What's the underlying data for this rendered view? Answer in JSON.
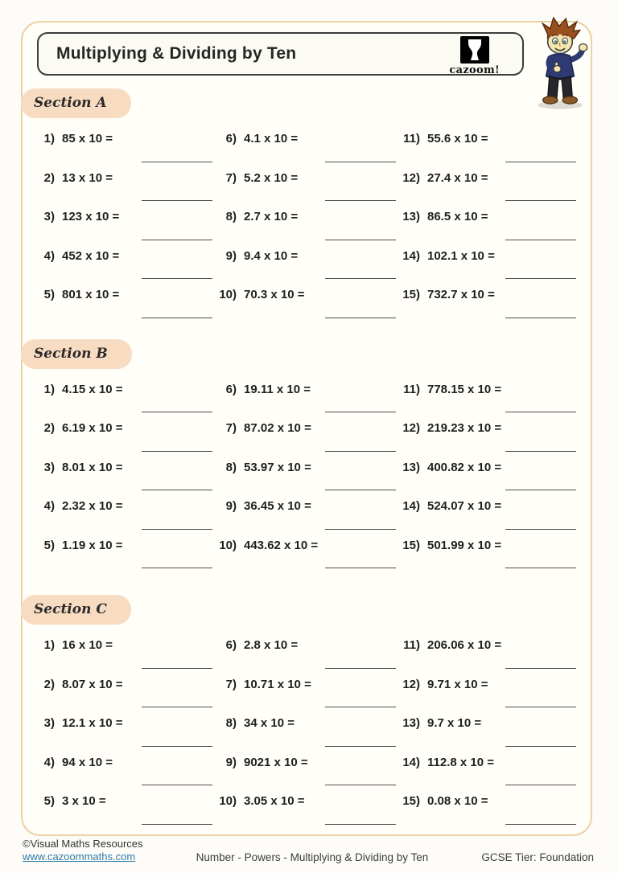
{
  "header": {
    "title": "Multiplying & Dividing by Ten",
    "logo_text": "cazoom!"
  },
  "sections": [
    {
      "label": "Section A",
      "questions": [
        {
          "num": "1)",
          "expr": "85 x 10 ="
        },
        {
          "num": "2)",
          "expr": "13 x 10 ="
        },
        {
          "num": "3)",
          "expr": "123 x 10 ="
        },
        {
          "num": "4)",
          "expr": "452 x 10 ="
        },
        {
          "num": "5)",
          "expr": "801 x 10 ="
        },
        {
          "num": "6)",
          "expr": "4.1 x 10 ="
        },
        {
          "num": "7)",
          "expr": "5.2 x 10 ="
        },
        {
          "num": "8)",
          "expr": "2.7 x 10 ="
        },
        {
          "num": "9)",
          "expr": "9.4 x 10 ="
        },
        {
          "num": "10)",
          "expr": "70.3 x 10 ="
        },
        {
          "num": "11)",
          "expr": "55.6 x 10 ="
        },
        {
          "num": "12)",
          "expr": "27.4 x 10 ="
        },
        {
          "num": "13)",
          "expr": "86.5 x 10 ="
        },
        {
          "num": "14)",
          "expr": "102.1 x 10 ="
        },
        {
          "num": "15)",
          "expr": "732.7 x 10 ="
        }
      ]
    },
    {
      "label": "Section B",
      "questions": [
        {
          "num": "1)",
          "expr": "4.15 x 10 ="
        },
        {
          "num": "2)",
          "expr": "6.19 x 10 ="
        },
        {
          "num": "3)",
          "expr": "8.01 x 10 ="
        },
        {
          "num": "4)",
          "expr": "2.32 x 10 ="
        },
        {
          "num": "5)",
          "expr": "1.19 x 10 ="
        },
        {
          "num": "6)",
          "expr": "19.11 x 10 ="
        },
        {
          "num": "7)",
          "expr": "87.02 x 10 ="
        },
        {
          "num": "8)",
          "expr": "53.97 x 10 ="
        },
        {
          "num": "9)",
          "expr": "36.45 x 10 ="
        },
        {
          "num": "10)",
          "expr": "443.62 x 10 ="
        },
        {
          "num": "11)",
          "expr": "778.15 x 10 ="
        },
        {
          "num": "12)",
          "expr": "219.23 x 10 ="
        },
        {
          "num": "13)",
          "expr": "400.82 x 10 ="
        },
        {
          "num": "14)",
          "expr": "524.07 x 10 ="
        },
        {
          "num": "15)",
          "expr": "501.99 x 10 ="
        }
      ]
    },
    {
      "label": "Section C",
      "questions": [
        {
          "num": "1)",
          "expr": "16 x 10 ="
        },
        {
          "num": "2)",
          "expr": "8.07 x 10 ="
        },
        {
          "num": "3)",
          "expr": "12.1 x 10 ="
        },
        {
          "num": "4)",
          "expr": "94 x 10 ="
        },
        {
          "num": "5)",
          "expr": "3 x 10 ="
        },
        {
          "num": "6)",
          "expr": "2.8 x 10 ="
        },
        {
          "num": "7)",
          "expr": "10.71 x 10 ="
        },
        {
          "num": "8)",
          "expr": "34 x 10 ="
        },
        {
          "num": "9)",
          "expr": "9021 x 10 ="
        },
        {
          "num": "10)",
          "expr": "3.05 x 10 ="
        },
        {
          "num": "11)",
          "expr": "206.06 x 10 ="
        },
        {
          "num": "12)",
          "expr": "9.71 x 10 ="
        },
        {
          "num": "13)",
          "expr": "9.7 x 10 ="
        },
        {
          "num": "14)",
          "expr": "112.8 x 10 ="
        },
        {
          "num": "15)",
          "expr": "0.08 x 10 ="
        }
      ]
    }
  ],
  "footer": {
    "copyright": "©Visual Maths Resources",
    "url": "www.cazoommaths.com",
    "center": "Number - Powers - Multiplying & Dividing by Ten",
    "right": "GCSE Tier: Foundation"
  },
  "colors": {
    "badge_background": "#f8dcc2",
    "frame_border": "#ecd2a4",
    "link": "#2e7ca8",
    "question_text": "#1f1f1f"
  }
}
